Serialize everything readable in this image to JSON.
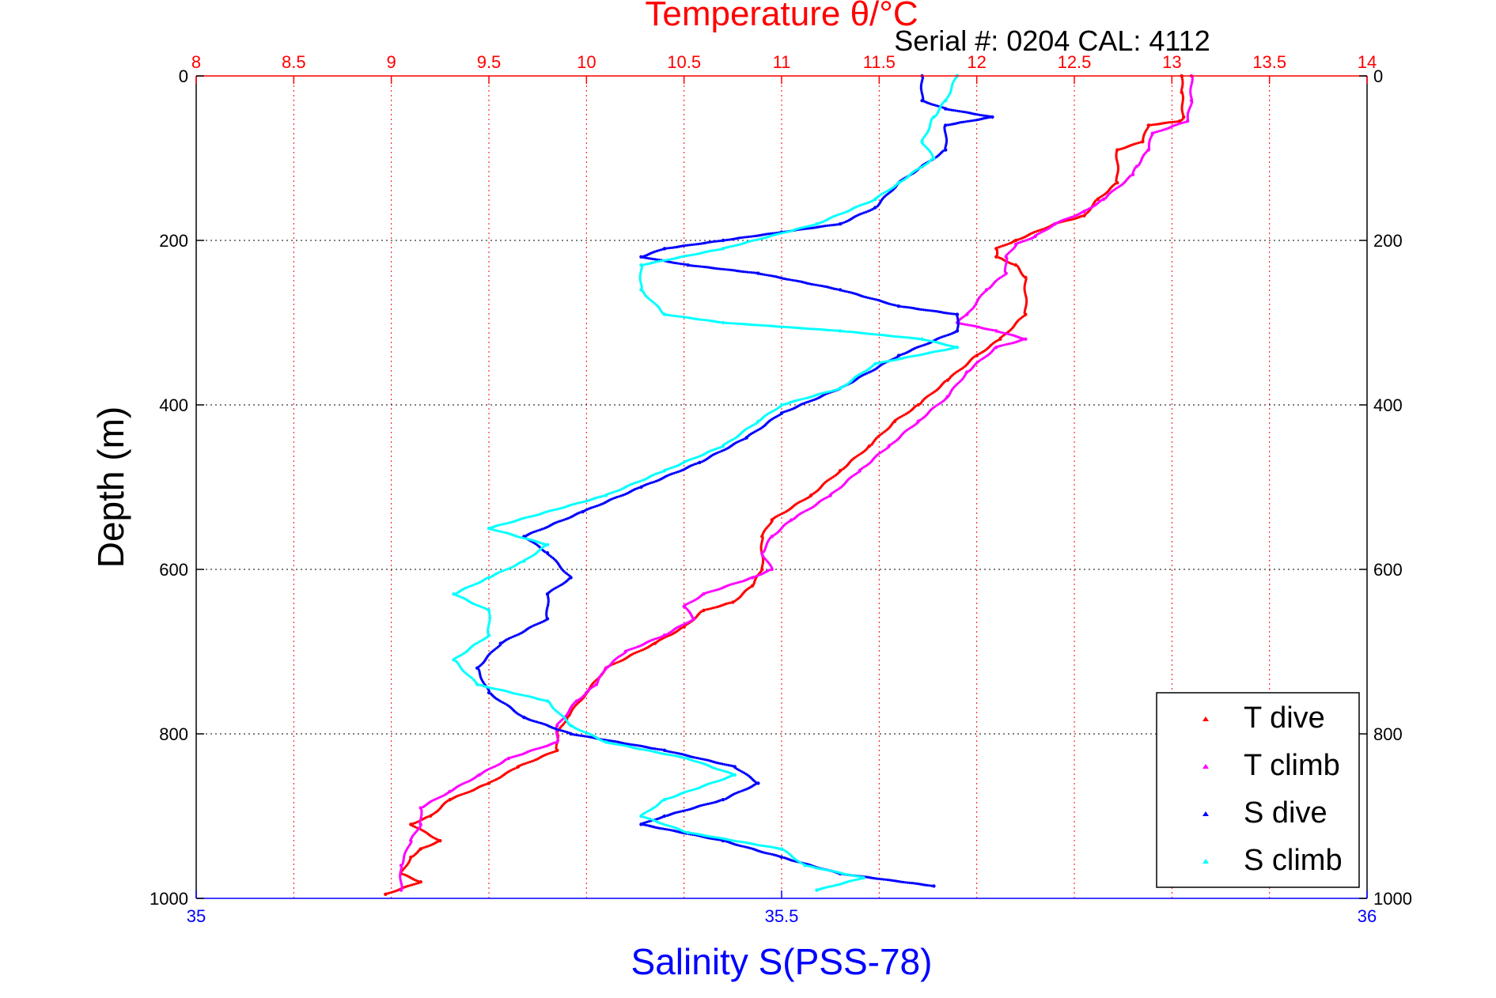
{
  "colors": {
    "t_dive": "#ff0000",
    "t_climb": "#ff00ff",
    "s_dive": "#0000ff",
    "s_climb": "#00ffff",
    "top_axis": "#ff0000",
    "bottom_axis": "#0000ff",
    "grid": "#000000",
    "top_grid": "#ff0000"
  },
  "chart_data": {
    "type": "scatter",
    "title": "Temperature θ/°C",
    "subtitle": "Serial #: 0204  CAL: 4112",
    "xlabel_top": "Temperature θ/°C",
    "xlabel_bottom": "Salinity S(PSS-78)",
    "ylabel": "Depth (m)",
    "temperature_axis": {
      "range": [
        8,
        14
      ],
      "ticks": [
        "8",
        "8.5",
        "9",
        "9.5",
        "10",
        "10.5",
        "11",
        "11.5",
        "12",
        "12.5",
        "13",
        "13.5",
        "14"
      ]
    },
    "salinity_axis": {
      "range": [
        35,
        36
      ],
      "ticks": [
        "35",
        "35.5",
        "36"
      ]
    },
    "depth_axis": {
      "range": [
        0,
        1000
      ],
      "reversed": true,
      "ticks": [
        "0",
        "200",
        "400",
        "600",
        "800",
        "1000"
      ]
    },
    "grid": true,
    "legend": {
      "position": "bottom-right",
      "entries": [
        "T dive",
        "T climb",
        "S dive",
        "S climb"
      ]
    },
    "series": [
      {
        "name": "T dive",
        "axis": "temperature",
        "points": [
          [
            13.05,
            0
          ],
          [
            13.05,
            20
          ],
          [
            13.06,
            50
          ],
          [
            13.04,
            55
          ],
          [
            12.88,
            60
          ],
          [
            12.85,
            80
          ],
          [
            12.72,
            90
          ],
          [
            12.72,
            130
          ],
          [
            12.62,
            150
          ],
          [
            12.55,
            170
          ],
          [
            12.4,
            180
          ],
          [
            12.2,
            200
          ],
          [
            12.1,
            210
          ],
          [
            12.1,
            220
          ],
          [
            12.2,
            230
          ],
          [
            12.25,
            245
          ],
          [
            12.25,
            290
          ],
          [
            12.12,
            320
          ],
          [
            12.0,
            340
          ],
          [
            11.85,
            370
          ],
          [
            11.7,
            400
          ],
          [
            11.58,
            420
          ],
          [
            11.45,
            450
          ],
          [
            11.3,
            480
          ],
          [
            11.15,
            510
          ],
          [
            10.95,
            540
          ],
          [
            10.9,
            560
          ],
          [
            10.9,
            600
          ],
          [
            10.85,
            620
          ],
          [
            10.75,
            640
          ],
          [
            10.6,
            650
          ],
          [
            10.5,
            670
          ],
          [
            10.35,
            690
          ],
          [
            10.1,
            720
          ],
          [
            10.0,
            750
          ],
          [
            9.9,
            780
          ],
          [
            9.85,
            800
          ],
          [
            9.85,
            820
          ],
          [
            9.65,
            840
          ],
          [
            9.5,
            860
          ],
          [
            9.3,
            880
          ],
          [
            9.2,
            900
          ],
          [
            9.1,
            910
          ],
          [
            9.25,
            930
          ],
          [
            9.15,
            940
          ],
          [
            9.1,
            950
          ],
          [
            9.05,
            970
          ],
          [
            9.15,
            980
          ],
          [
            8.97,
            995
          ]
        ]
      },
      {
        "name": "T climb",
        "axis": "temperature",
        "points": [
          [
            13.1,
            0
          ],
          [
            13.1,
            30
          ],
          [
            13.08,
            55
          ],
          [
            12.9,
            70
          ],
          [
            12.88,
            90
          ],
          [
            12.82,
            110
          ],
          [
            12.8,
            120
          ],
          [
            12.65,
            150
          ],
          [
            12.55,
            165
          ],
          [
            12.4,
            180
          ],
          [
            12.3,
            195
          ],
          [
            12.2,
            205
          ],
          [
            12.15,
            220
          ],
          [
            12.15,
            240
          ],
          [
            12.05,
            260
          ],
          [
            11.95,
            290
          ],
          [
            11.9,
            300
          ],
          [
            12.1,
            310
          ],
          [
            12.25,
            320
          ],
          [
            12.1,
            330
          ],
          [
            11.95,
            360
          ],
          [
            11.85,
            390
          ],
          [
            11.7,
            420
          ],
          [
            11.55,
            450
          ],
          [
            11.4,
            480
          ],
          [
            11.25,
            510
          ],
          [
            11.05,
            540
          ],
          [
            10.95,
            560
          ],
          [
            10.9,
            580
          ],
          [
            10.95,
            600
          ],
          [
            10.85,
            610
          ],
          [
            10.6,
            630
          ],
          [
            10.5,
            645
          ],
          [
            10.55,
            660
          ],
          [
            10.4,
            680
          ],
          [
            10.2,
            700
          ],
          [
            10.1,
            720
          ],
          [
            10.05,
            740
          ],
          [
            9.95,
            760
          ],
          [
            9.85,
            790
          ],
          [
            9.85,
            810
          ],
          [
            9.6,
            830
          ],
          [
            9.45,
            850
          ],
          [
            9.3,
            870
          ],
          [
            9.15,
            890
          ],
          [
            9.15,
            910
          ],
          [
            9.1,
            930
          ],
          [
            9.05,
            960
          ],
          [
            9.05,
            990
          ]
        ]
      },
      {
        "name": "S dive",
        "axis": "salinity",
        "points": [
          [
            35.62,
            0
          ],
          [
            35.62,
            30
          ],
          [
            35.64,
            40
          ],
          [
            35.68,
            50
          ],
          [
            35.64,
            60
          ],
          [
            35.64,
            90
          ],
          [
            35.62,
            110
          ],
          [
            35.6,
            130
          ],
          [
            35.58,
            160
          ],
          [
            35.55,
            180
          ],
          [
            35.5,
            190
          ],
          [
            35.45,
            200
          ],
          [
            35.4,
            210
          ],
          [
            35.38,
            220
          ],
          [
            35.42,
            230
          ],
          [
            35.48,
            240
          ],
          [
            35.55,
            260
          ],
          [
            35.6,
            280
          ],
          [
            35.65,
            290
          ],
          [
            35.65,
            310
          ],
          [
            35.6,
            340
          ],
          [
            35.55,
            380
          ],
          [
            35.5,
            410
          ],
          [
            35.47,
            440
          ],
          [
            35.43,
            470
          ],
          [
            35.38,
            500
          ],
          [
            35.33,
            530
          ],
          [
            35.28,
            560
          ],
          [
            35.3,
            580
          ],
          [
            35.32,
            610
          ],
          [
            35.3,
            630
          ],
          [
            35.3,
            660
          ],
          [
            35.26,
            690
          ],
          [
            35.24,
            720
          ],
          [
            35.25,
            750
          ],
          [
            35.28,
            780
          ],
          [
            35.32,
            800
          ],
          [
            35.4,
            820
          ],
          [
            35.46,
            840
          ],
          [
            35.48,
            860
          ],
          [
            35.45,
            880
          ],
          [
            35.4,
            900
          ],
          [
            35.38,
            910
          ],
          [
            35.45,
            930
          ],
          [
            35.5,
            950
          ],
          [
            35.55,
            970
          ],
          [
            35.63,
            985
          ]
        ]
      },
      {
        "name": "S climb",
        "axis": "salinity",
        "points": [
          [
            35.65,
            0
          ],
          [
            35.64,
            30
          ],
          [
            35.63,
            50
          ],
          [
            35.62,
            80
          ],
          [
            35.63,
            100
          ],
          [
            35.6,
            130
          ],
          [
            35.58,
            150
          ],
          [
            35.53,
            180
          ],
          [
            35.45,
            210
          ],
          [
            35.38,
            230
          ],
          [
            35.38,
            260
          ],
          [
            35.4,
            290
          ],
          [
            35.45,
            300
          ],
          [
            35.55,
            310
          ],
          [
            35.62,
            320
          ],
          [
            35.65,
            330
          ],
          [
            35.58,
            350
          ],
          [
            35.55,
            380
          ],
          [
            35.5,
            400
          ],
          [
            35.48,
            420
          ],
          [
            35.45,
            450
          ],
          [
            35.4,
            480
          ],
          [
            35.35,
            510
          ],
          [
            35.25,
            550
          ],
          [
            35.3,
            570
          ],
          [
            35.28,
            590
          ],
          [
            35.25,
            610
          ],
          [
            35.22,
            630
          ],
          [
            35.25,
            650
          ],
          [
            35.25,
            680
          ],
          [
            35.22,
            710
          ],
          [
            35.24,
            740
          ],
          [
            35.3,
            760
          ],
          [
            35.32,
            790
          ],
          [
            35.35,
            810
          ],
          [
            35.42,
            830
          ],
          [
            35.46,
            850
          ],
          [
            35.4,
            880
          ],
          [
            35.38,
            900
          ],
          [
            35.42,
            920
          ],
          [
            35.5,
            940
          ],
          [
            35.52,
            960
          ],
          [
            35.57,
            975
          ],
          [
            35.53,
            990
          ]
        ]
      }
    ]
  }
}
